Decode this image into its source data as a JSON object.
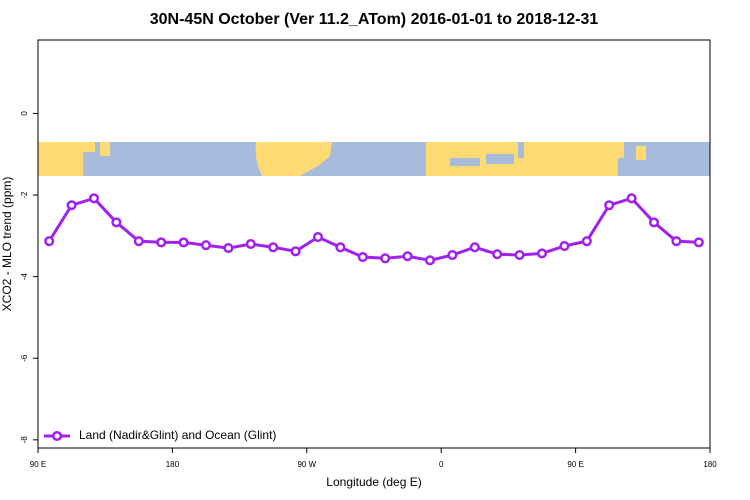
{
  "chart_data": {
    "type": "line",
    "title": "30N-45N October (Ver 11.2_ATom)   2016-01-01 to 2018-12-31",
    "xlabel": "Longitude (deg E)",
    "ylabel": "XCO2 - MLO trend (ppm)",
    "x": [
      97.5,
      112.5,
      127.5,
      142.5,
      157.5,
      172.5,
      187.5,
      202.5,
      217.5,
      232.5,
      247.5,
      262.5,
      277.5,
      292.5,
      307.5,
      322.5,
      337.5,
      352.5,
      367.5,
      382.5,
      397.5,
      412.5,
      427.5,
      442.5,
      457.5,
      472.5,
      487.5,
      502.5,
      517.5,
      532.5
    ],
    "series": [
      {
        "name": "Land (Nadir&Glint) and Ocean (Glint)",
        "color": "#a020f0",
        "values": [
          -3.13,
          -2.25,
          -2.08,
          -2.67,
          -3.13,
          -3.16,
          -3.16,
          -3.23,
          -3.3,
          -3.2,
          -3.28,
          -3.38,
          -3.03,
          -3.28,
          -3.52,
          -3.55,
          -3.5,
          -3.6,
          -3.47,
          -3.28,
          -3.45,
          -3.47,
          -3.43,
          -3.25,
          -3.13,
          -2.25,
          -2.08,
          -2.67,
          -3.13,
          -3.16
        ]
      }
    ],
    "xlim": [
      90,
      540
    ],
    "xticks": [
      {
        "value": 90,
        "label": "90 E"
      },
      {
        "value": 180,
        "label": "180"
      },
      {
        "value": 270,
        "label": "90 W"
      },
      {
        "value": 360,
        "label": "0"
      },
      {
        "value": 450,
        "label": "90 E"
      },
      {
        "value": 540,
        "label": "180"
      }
    ],
    "ylim": [
      -8.2,
      1.8
    ],
    "yticks": [
      0,
      -2,
      -4,
      -6,
      -8
    ],
    "legend": "bottom-left"
  }
}
